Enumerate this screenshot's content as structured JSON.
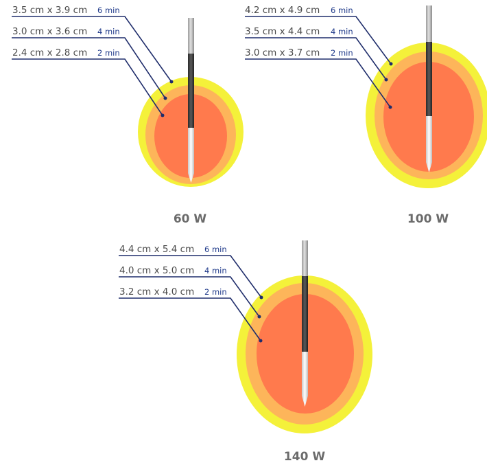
{
  "panels": [
    {
      "power": "60 W",
      "zones": [
        {
          "size": "3.5 cm x 3.9 cm",
          "time": "6 min"
        },
        {
          "size": "3.0 cm x 3.6 cm",
          "time": "4 min"
        },
        {
          "size": "2.4 cm x 2.8 cm",
          "time": "2 min"
        }
      ]
    },
    {
      "power": "100 W",
      "zones": [
        {
          "size": "4.2 cm x 4.9 cm",
          "time": "6 min"
        },
        {
          "size": "3.5 cm x 4.4 cm",
          "time": "4 min"
        },
        {
          "size": "3.0 cm x 3.7 cm",
          "time": "2 min"
        }
      ]
    },
    {
      "power": "140 W",
      "zones": [
        {
          "size": "4.4 cm x 5.4 cm",
          "time": "6 min"
        },
        {
          "size": "4.0 cm x 5.0 cm",
          "time": "4 min"
        },
        {
          "size": "3.2 cm x 4.0 cm",
          "time": "2 min"
        }
      ]
    }
  ],
  "colors": {
    "zone_6min": "#f4f13a",
    "zone_4min": "#fdb55a",
    "zone_2min": "#ff7a4d",
    "leader_line": "#1f2d6b",
    "time_label": "#1f3a8a"
  }
}
